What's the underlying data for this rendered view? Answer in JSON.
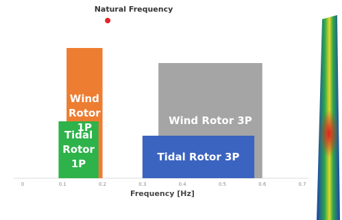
{
  "chart_data": {
    "type": "range",
    "x_label": "Frequency [Hz]",
    "xlim": [
      0,
      0.7
    ],
    "xticks": [
      0,
      0.1,
      0.2,
      0.3,
      0.4,
      0.5,
      0.6,
      0.7
    ],
    "series": [
      {
        "name": "Wind Rotor 1P",
        "color": "#ed7d31",
        "range": [
          0.11,
          0.2
        ]
      },
      {
        "name": "Tidal Rotor 1P",
        "color": "#2eb24a",
        "range": [
          0.09,
          0.19
        ]
      },
      {
        "name": "Wind Rotor 3P",
        "color": "#a5a5a5",
        "range": [
          0.34,
          0.6
        ]
      },
      {
        "name": "Tidal Rotor 3P",
        "color": "#3b64c0",
        "range": [
          0.3,
          0.58
        ]
      }
    ],
    "marker": {
      "name": "Natural Frequency",
      "color": "#e3222b",
      "x": 0.213
    }
  }
}
